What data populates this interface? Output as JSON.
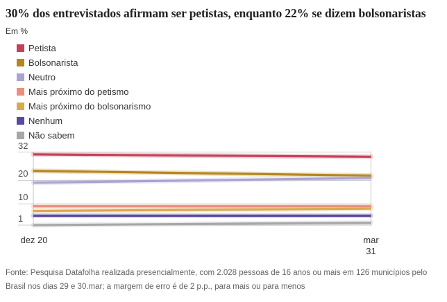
{
  "title": "30% dos entrevistados afirmam ser petistas, enquanto 22% se dizem bolsonaristas",
  "subtitle": "Em %",
  "source": "Fonte: Pesquisa Datafolha realizada presencialmente, com 2.028 pessoas de 16 anos ou mais em 126 municípios pelo Brasil nos dias 29 e 30.mar; a margem de erro é de 2 p.p., para mais ou para menos",
  "chart_data": {
    "type": "line",
    "x": [
      "dez 20",
      "mar 31"
    ],
    "x_display": [
      "dez 20",
      "mar\n31"
    ],
    "series": [
      {
        "name": "Petista",
        "color": "#c5405a",
        "values": [
          31,
          30
        ]
      },
      {
        "name": "Bolsonarista",
        "color": "#b5861b",
        "values": [
          24,
          22
        ]
      },
      {
        "name": "Neutro",
        "color": "#a9a3d2",
        "values": [
          19,
          21
        ]
      },
      {
        "name": "Mais próximo do petismo",
        "color": "#ec8e7d",
        "values": [
          9,
          9
        ]
      },
      {
        "name": "Mais próximo do bolsonarismo",
        "color": "#d9a94e",
        "values": [
          7,
          8
        ]
      },
      {
        "name": "Nenhum",
        "color": "#584aa0",
        "values": [
          5,
          5
        ]
      },
      {
        "name": "Não sabem",
        "color": "#a7a7a7",
        "values": [
          1,
          2
        ]
      }
    ],
    "y_ticks": [
      32,
      20,
      10,
      1
    ],
    "ylim": [
      0,
      32
    ],
    "grid": "horizontal",
    "legend_position": "top-left",
    "grid_color": "#cccccc"
  }
}
